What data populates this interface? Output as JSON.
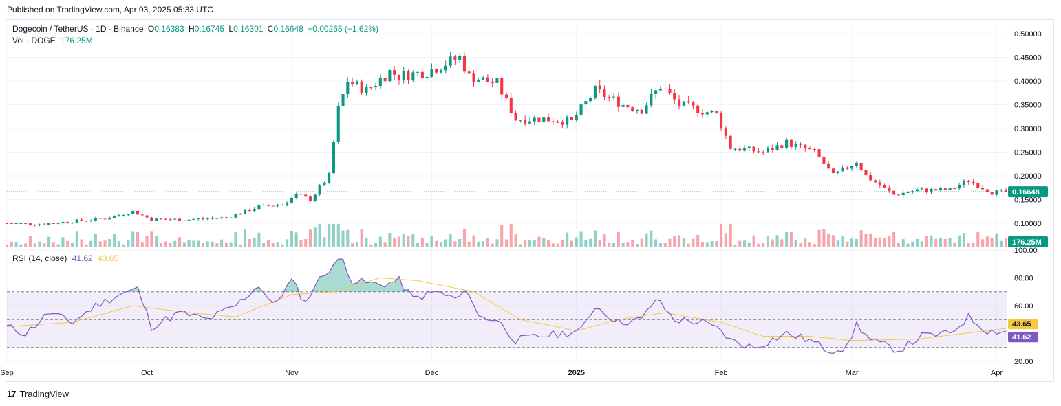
{
  "header": {
    "published": "Published on TradingView.com, Apr 03, 2025 05:33 UTC"
  },
  "legend": {
    "symbol": "Dogecoin / TetherUS · 1D · Binance",
    "o_label": "O",
    "o": "0.16383",
    "h_label": "H",
    "h": "0.16745",
    "l_label": "L",
    "l": "0.16301",
    "c_label": "C",
    "c": "0.16648",
    "change": "+0.00265 (+1.62%)",
    "vol_label": "Vol · DOGE",
    "vol": "176.25M"
  },
  "rsi_legend": {
    "label": "RSI (14, close)",
    "rsi": "41.62",
    "ma": "43.65"
  },
  "footer": {
    "brand": "TradingView"
  },
  "colors": {
    "up": "#089981",
    "down": "#f23645",
    "rsi": "#7e57c2",
    "rsi_ma": "#f7c845",
    "band": "#7e57c2"
  },
  "chart_data": [
    {
      "type": "candlestick",
      "title": "Dogecoin / TetherUS · 1D · Binance",
      "ylim": [
        0.08,
        0.51
      ],
      "yticks": [
        "0.50000",
        "0.45000",
        "0.40000",
        "0.35000",
        "0.30000",
        "0.25000",
        "0.20000",
        "0.15000",
        "0.10000"
      ],
      "ytick_values": [
        0.5,
        0.45,
        0.4,
        0.35,
        0.3,
        0.25,
        0.2,
        0.15,
        0.1
      ],
      "xticks": [
        "Sep",
        "Oct",
        "Nov",
        "Dec",
        "2025",
        "Feb",
        "Mar",
        "Apr"
      ],
      "xtick_dates": [
        "2024-09-01",
        "2024-10-01",
        "2024-11-01",
        "2024-12-01",
        "2025-01-01",
        "2025-02-01",
        "2025-03-01",
        "2025-04-01"
      ],
      "last_price": "0.16648",
      "last_volume": "176.25M",
      "close_anchors": [
        [
          "2024-09-01",
          0.1
        ],
        [
          "2024-09-08",
          0.098
        ],
        [
          "2024-09-15",
          0.104
        ],
        [
          "2024-09-22",
          0.11
        ],
        [
          "2024-09-28",
          0.125
        ],
        [
          "2024-10-02",
          0.108
        ],
        [
          "2024-10-10",
          0.108
        ],
        [
          "2024-10-18",
          0.112
        ],
        [
          "2024-10-25",
          0.135
        ],
        [
          "2024-10-30",
          0.14
        ],
        [
          "2024-11-02",
          0.16
        ],
        [
          "2024-11-05",
          0.15
        ],
        [
          "2024-11-09",
          0.2
        ],
        [
          "2024-11-11",
          0.34
        ],
        [
          "2024-11-13",
          0.4
        ],
        [
          "2024-11-17",
          0.38
        ],
        [
          "2024-11-22",
          0.42
        ],
        [
          "2024-11-24",
          0.41
        ],
        [
          "2024-11-30",
          0.42
        ],
        [
          "2024-12-07",
          0.45
        ],
        [
          "2024-12-09",
          0.41
        ],
        [
          "2024-12-15",
          0.395
        ],
        [
          "2024-12-19",
          0.32
        ],
        [
          "2024-12-25",
          0.32
        ],
        [
          "2024-12-31",
          0.315
        ],
        [
          "2025-01-05",
          0.38
        ],
        [
          "2025-01-11",
          0.35
        ],
        [
          "2025-01-15",
          0.34
        ],
        [
          "2025-01-19",
          0.39
        ],
        [
          "2025-01-23",
          0.35
        ],
        [
          "2025-01-31",
          0.33
        ],
        [
          "2025-02-03",
          0.26
        ],
        [
          "2025-02-10",
          0.25
        ],
        [
          "2025-02-15",
          0.27
        ],
        [
          "2025-02-21",
          0.25
        ],
        [
          "2025-02-25",
          0.2
        ],
        [
          "2025-03-02",
          0.23
        ],
        [
          "2025-03-04",
          0.2
        ],
        [
          "2025-03-10",
          0.16
        ],
        [
          "2025-03-15",
          0.17
        ],
        [
          "2025-03-22",
          0.17
        ],
        [
          "2025-03-26",
          0.19
        ],
        [
          "2025-03-31",
          0.165
        ],
        [
          "2025-04-03",
          0.16648
        ]
      ]
    },
    {
      "type": "line",
      "title": "RSI (14, close)",
      "ylim": [
        20,
        100
      ],
      "yticks": [
        "100.00",
        "80.00",
        "60.00",
        "20.00"
      ],
      "ytick_values": [
        100,
        80,
        60,
        20
      ],
      "bands": [
        70,
        50,
        30
      ],
      "last_rsi": "41.62",
      "last_ma": "43.65",
      "rsi_anchors": [
        [
          "2024-09-01",
          45
        ],
        [
          "2024-09-05",
          40
        ],
        [
          "2024-09-10",
          55
        ],
        [
          "2024-09-15",
          48
        ],
        [
          "2024-09-20",
          60
        ],
        [
          "2024-09-25",
          68
        ],
        [
          "2024-09-29",
          72
        ],
        [
          "2024-10-02",
          45
        ],
        [
          "2024-10-08",
          55
        ],
        [
          "2024-10-14",
          50
        ],
        [
          "2024-10-20",
          60
        ],
        [
          "2024-10-25",
          75
        ],
        [
          "2024-10-28",
          60
        ],
        [
          "2024-11-01",
          78
        ],
        [
          "2024-11-04",
          62
        ],
        [
          "2024-11-06",
          75
        ],
        [
          "2024-11-10",
          90
        ],
        [
          "2024-11-12",
          93
        ],
        [
          "2024-11-14",
          78
        ],
        [
          "2024-11-20",
          75
        ],
        [
          "2024-11-24",
          78
        ],
        [
          "2024-11-27",
          65
        ],
        [
          "2024-12-02",
          70
        ],
        [
          "2024-12-06",
          65
        ],
        [
          "2024-12-09",
          70
        ],
        [
          "2024-12-11",
          52
        ],
        [
          "2024-12-15",
          50
        ],
        [
          "2024-12-19",
          35
        ],
        [
          "2024-12-24",
          38
        ],
        [
          "2024-12-29",
          40
        ],
        [
          "2025-01-02",
          42
        ],
        [
          "2025-01-05",
          60
        ],
        [
          "2025-01-10",
          48
        ],
        [
          "2025-01-15",
          50
        ],
        [
          "2025-01-18",
          65
        ],
        [
          "2025-01-22",
          50
        ],
        [
          "2025-01-28",
          48
        ],
        [
          "2025-02-01",
          42
        ],
        [
          "2025-02-03",
          35
        ],
        [
          "2025-02-08",
          30
        ],
        [
          "2025-02-15",
          40
        ],
        [
          "2025-02-20",
          35
        ],
        [
          "2025-02-24",
          28
        ],
        [
          "2025-02-28",
          30
        ],
        [
          "2025-03-02",
          47
        ],
        [
          "2025-03-05",
          35
        ],
        [
          "2025-03-11",
          28
        ],
        [
          "2025-03-16",
          38
        ],
        [
          "2025-03-22",
          40
        ],
        [
          "2025-03-26",
          52
        ],
        [
          "2025-03-30",
          42
        ],
        [
          "2025-04-03",
          41.62
        ]
      ],
      "ma_anchors": [
        [
          "2024-09-01",
          45
        ],
        [
          "2024-09-15",
          48
        ],
        [
          "2024-09-28",
          60
        ],
        [
          "2024-10-10",
          55
        ],
        [
          "2024-10-20",
          52
        ],
        [
          "2024-11-01",
          68
        ],
        [
          "2024-11-10",
          70
        ],
        [
          "2024-11-20",
          80
        ],
        [
          "2024-11-28",
          78
        ],
        [
          "2024-12-10",
          70
        ],
        [
          "2024-12-20",
          50
        ],
        [
          "2025-01-01",
          42
        ],
        [
          "2025-01-10",
          50
        ],
        [
          "2025-01-20",
          55
        ],
        [
          "2025-02-01",
          48
        ],
        [
          "2025-02-10",
          38
        ],
        [
          "2025-02-20",
          38
        ],
        [
          "2025-03-01",
          35
        ],
        [
          "2025-03-15",
          36
        ],
        [
          "2025-03-25",
          40
        ],
        [
          "2025-04-03",
          43.65
        ]
      ]
    }
  ]
}
